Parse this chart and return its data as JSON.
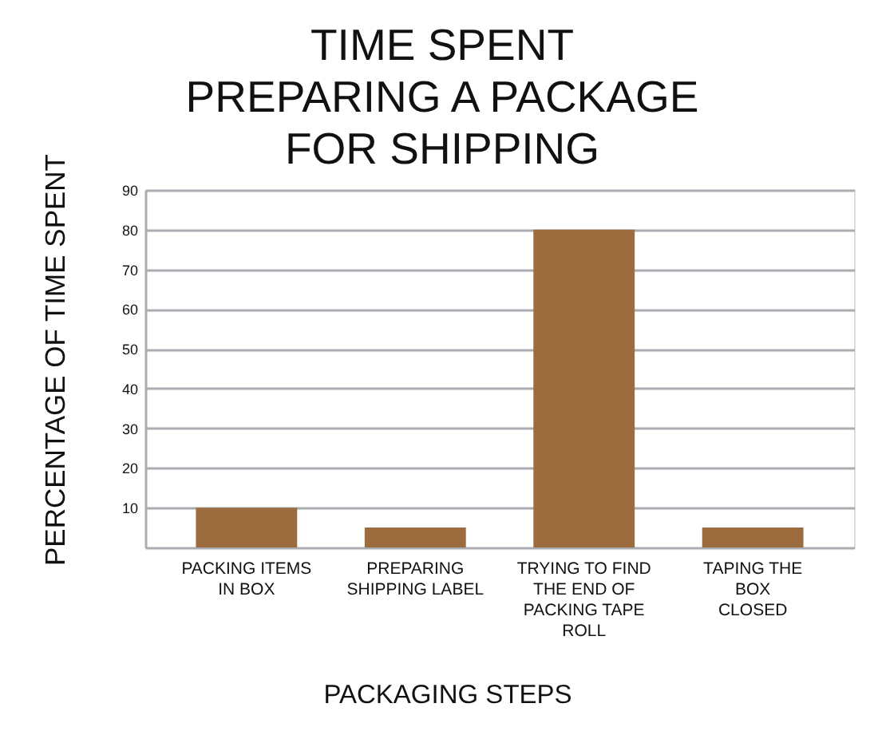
{
  "chart_data": {
    "type": "bar",
    "title": "TIME SPENT\nPREPARING A PACKAGE\nFOR SHIPPING",
    "xlabel": "PACKAGING STEPS",
    "ylabel": "PERCENTAGE OF TIME SPENT",
    "categories": [
      "PACKING ITEMS\nIN BOX",
      "PREPARING\nSHIPPING LABEL",
      "TRYING TO FIND\nTHE END OF\nPACKING TAPE\nROLL",
      "TAPING THE\nBOX\nCLOSED"
    ],
    "values": [
      10,
      5,
      80,
      5
    ],
    "color": "#9c6c3e",
    "ylim": [
      0,
      90
    ],
    "yticks": [
      10,
      20,
      30,
      40,
      50,
      60,
      70,
      80,
      90
    ],
    "grid": "y"
  }
}
